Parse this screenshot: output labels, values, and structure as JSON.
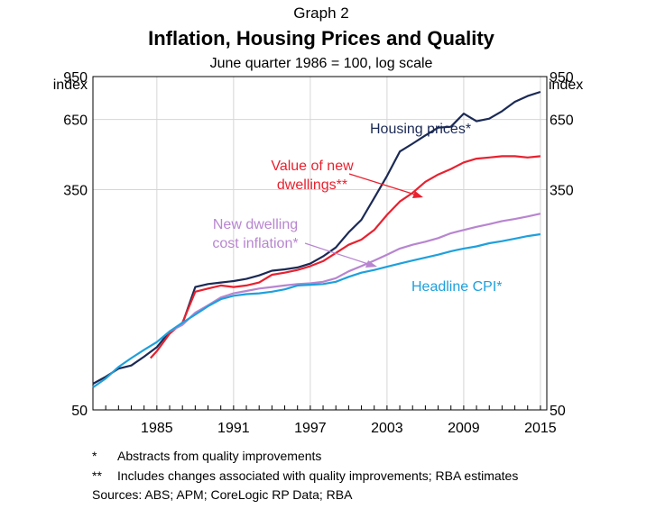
{
  "header": {
    "graph_number": "Graph 2",
    "title": "Inflation, Housing Prices and Quality",
    "subtitle": "June quarter 1986 = 100, log scale"
  },
  "chart_data": {
    "type": "line",
    "title": "Inflation, Housing Prices and Quality",
    "subtitle": "June quarter 1986 = 100, log scale",
    "y_unit_left": "index",
    "y_unit_right": "index",
    "y_scale": "log",
    "ylim": [
      50,
      950
    ],
    "yticks": [
      50,
      350,
      650,
      950
    ],
    "xlim": [
      1980.0,
      2015.5
    ],
    "xticks": [
      1985,
      1991,
      1997,
      2003,
      2009,
      2015
    ],
    "grid": true,
    "legend": "inline labels",
    "series": [
      {
        "name": "Housing prices*",
        "color": "#1b2a55",
        "x": [
          1980.0,
          1981,
          1982,
          1983,
          1984,
          1985,
          1986,
          1987,
          1988,
          1989,
          1990,
          1991,
          1992,
          1993,
          1994,
          1995,
          1996,
          1997,
          1998,
          1999,
          2000,
          2001,
          2002,
          2003,
          2004,
          2005,
          2006,
          2007,
          2008,
          2009,
          2010,
          2011,
          2012,
          2013,
          2014,
          2015.0
        ],
        "values": [
          63,
          67,
          72,
          74,
          80,
          87,
          100,
          107,
          148,
          152,
          154,
          156,
          159,
          164,
          171,
          173,
          176,
          182,
          194,
          210,
          240,
          268,
          325,
          395,
          490,
          525,
          565,
          605,
          610,
          685,
          640,
          655,
          700,
          760,
          800,
          830
        ]
      },
      {
        "name": "Value of new dwellings**",
        "color": "#e8212f",
        "x": [
          1984.5,
          1985,
          1986,
          1987,
          1988,
          1989,
          1990,
          1991,
          1992,
          1993,
          1994,
          1995,
          1996,
          1997,
          1998,
          1999,
          2000,
          2001,
          2002,
          2003,
          2004,
          2005,
          2006,
          2007,
          2008,
          2009,
          2010,
          2011,
          2012,
          2013,
          2014,
          2015.0
        ],
        "values": [
          79,
          84,
          98,
          108,
          142,
          146,
          150,
          148,
          150,
          154,
          165,
          168,
          172,
          178,
          186,
          200,
          215,
          225,
          245,
          280,
          315,
          340,
          375,
          400,
          420,
          445,
          460,
          465,
          470,
          470,
          465,
          470
        ]
      },
      {
        "name": "New dwelling cost inflation*",
        "color": "#b885d0",
        "x": [
          1986,
          1987,
          1988,
          1989,
          1990,
          1991,
          1992,
          1993,
          1994,
          1995,
          1996,
          1997,
          1998,
          1999,
          2000,
          2001,
          2002,
          2003,
          2004,
          2005,
          2006,
          2007,
          2008,
          2009,
          2010,
          2011,
          2012,
          2013,
          2014,
          2015.0
        ],
        "values": [
          100,
          106,
          118,
          126,
          135,
          140,
          143,
          146,
          148,
          150,
          152,
          153,
          155,
          160,
          170,
          178,
          187,
          197,
          208,
          215,
          221,
          228,
          238,
          245,
          252,
          258,
          265,
          270,
          276,
          283
        ]
      },
      {
        "name": "Headline CPI*",
        "color": "#1ea0dc",
        "x": [
          1980.0,
          1981,
          1982,
          1983,
          1984,
          1985,
          1986,
          1987,
          1988,
          1989,
          1990,
          1991,
          1992,
          1993,
          1994,
          1995,
          1996,
          1997,
          1998,
          1999,
          2000,
          2001,
          2002,
          2003,
          2004,
          2005,
          2006,
          2007,
          2008,
          2009,
          2010,
          2011,
          2012,
          2013,
          2014,
          2015.0
        ],
        "values": [
          61,
          66,
          73,
          79,
          85,
          91,
          100,
          108,
          116,
          125,
          133,
          137,
          139,
          140,
          142,
          145,
          150,
          151,
          152,
          155,
          162,
          168,
          172,
          177,
          182,
          187,
          192,
          197,
          203,
          208,
          212,
          218,
          222,
          227,
          232,
          236
        ]
      }
    ],
    "annotations": {
      "housing": "Housing prices*",
      "value_line1": "Value of new",
      "value_line2": "dwellings**",
      "cost_line1": "New dwelling",
      "cost_line2": "cost inflation*",
      "cpi": "Headline CPI*"
    }
  },
  "footnotes": [
    {
      "mark": "*",
      "text": "Abstracts from quality improvements"
    },
    {
      "mark": "**",
      "text": "Includes changes associated with quality improvements; RBA estimates"
    }
  ],
  "sources": "Sources:  ABS; APM; CoreLogic RP Data; RBA",
  "colors": {
    "housing": "#1b2a55",
    "value": "#e8212f",
    "cost": "#b885d0",
    "cpi": "#1ea0dc",
    "grid": "#d6d6d6",
    "axis": "#000000"
  }
}
